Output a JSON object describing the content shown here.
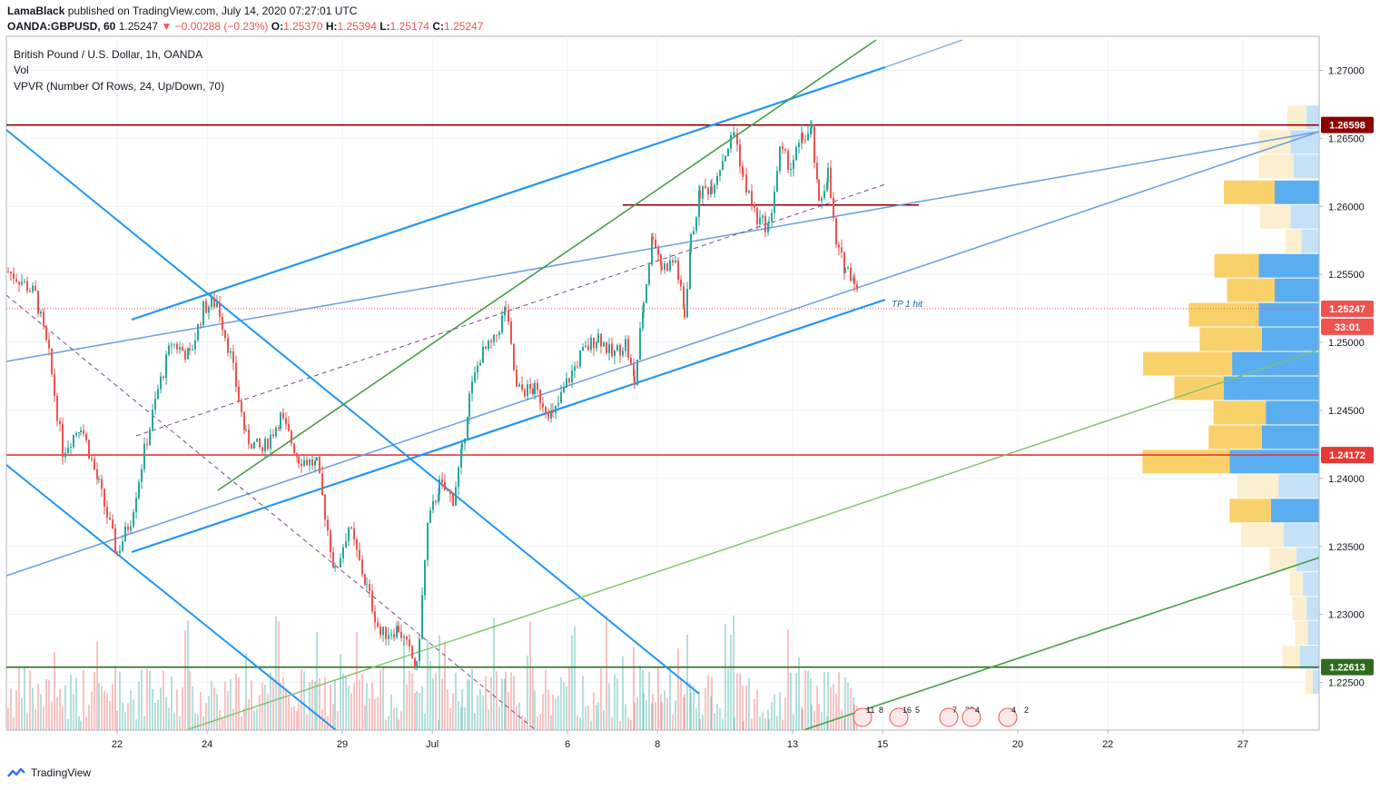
{
  "header": {
    "author": "LamaBlack",
    "published": "published on TradingView.com, July 14, 2020 07:27:01 UTC",
    "symbol": "OANDA:GBPUSD, 60",
    "last": "1.25247",
    "change": "−0.00288 (−0.23%)",
    "o_label": "O:",
    "o_value": "1.25370",
    "h_label": "H:",
    "h_value": "1.25394",
    "l_label": "L:",
    "l_value": "1.25174",
    "c_label": "C:",
    "c_value": "1.25247"
  },
  "legend": {
    "main": "British Pound / U.S. Dollar, 1h, OANDA",
    "vol": "Vol",
    "vpvr": "VPVR (Number Of Rows, 24, Up/Down, 70)"
  },
  "footer": {
    "brand": "TradingView"
  },
  "colors": {
    "up": "#26a69a",
    "down": "#ef5350",
    "blue": "#2196f3",
    "green": "#43a047",
    "darkred": "#8b0000",
    "red": "#e53935",
    "darkgreen": "#2e6b1f",
    "vp_up": "#5aaef0",
    "vp_down": "#f9d16b",
    "vp_up_light": "#c5e1f7",
    "vp_down_light": "#fcefcf"
  },
  "chart_data": {
    "type": "candlestick",
    "y_ticks": [
      "1.27000",
      "1.26500",
      "1.26000",
      "1.25500",
      "1.25000",
      "1.24500",
      "1.24000",
      "1.23500",
      "1.23000",
      "1.22500"
    ],
    "ylim": [
      1.2215,
      1.2725
    ],
    "x_ticks": [
      "22",
      "24",
      "29",
      "Jul",
      "6",
      "8",
      "13",
      "15",
      "20",
      "22",
      "27"
    ],
    "price_labels": [
      {
        "value": "1.26598",
        "price": 1.26598,
        "color": "#8b0000"
      },
      {
        "value": "1.25247",
        "price": 1.25247,
        "color": "#ef5350"
      },
      {
        "value": "33:01",
        "price": 1.25115,
        "color": "#ef5350"
      },
      {
        "value": "1.24172",
        "price": 1.24172,
        "color": "#e53935"
      },
      {
        "value": "1.22613",
        "price": 1.22613,
        "color": "#2e6b1f"
      }
    ],
    "horizontal_levels": [
      1.26598,
      1.24172,
      1.22613
    ],
    "resistance_segment": {
      "price": 1.2601
    },
    "annotation": "TP 1 hit",
    "close_trajectory": [
      [
        0,
        1.2552
      ],
      [
        15,
        1.2545
      ],
      [
        30,
        1.2535
      ],
      [
        45,
        1.249
      ],
      [
        60,
        1.242
      ],
      [
        80,
        1.244
      ],
      [
        100,
        1.2395
      ],
      [
        120,
        1.2345
      ],
      [
        135,
        1.237
      ],
      [
        150,
        1.242
      ],
      [
        165,
        1.2465
      ],
      [
        180,
        1.25
      ],
      [
        200,
        1.249
      ],
      [
        215,
        1.2525
      ],
      [
        230,
        1.253
      ],
      [
        245,
        1.249
      ],
      [
        262,
        1.243
      ],
      [
        280,
        1.242
      ],
      [
        300,
        1.2445
      ],
      [
        320,
        1.2415
      ],
      [
        340,
        1.241
      ],
      [
        360,
        1.233
      ],
      [
        375,
        1.2365
      ],
      [
        395,
        1.232
      ],
      [
        410,
        1.2285
      ],
      [
        430,
        1.229
      ],
      [
        450,
        1.226
      ],
      [
        462,
        1.2365
      ],
      [
        475,
        1.2395
      ],
      [
        490,
        1.2385
      ],
      [
        500,
        1.242
      ],
      [
        508,
        1.246
      ],
      [
        520,
        1.249
      ],
      [
        535,
        1.25
      ],
      [
        548,
        1.2525
      ],
      [
        560,
        1.2465
      ],
      [
        580,
        1.2465
      ],
      [
        600,
        1.2445
      ],
      [
        615,
        1.247
      ],
      [
        630,
        1.249
      ],
      [
        650,
        1.2505
      ],
      [
        665,
        1.249
      ],
      [
        680,
        1.25
      ],
      [
        690,
        1.247
      ],
      [
        700,
        1.253
      ],
      [
        710,
        1.258
      ],
      [
        720,
        1.2555
      ],
      [
        735,
        1.256
      ],
      [
        745,
        1.252
      ],
      [
        752,
        1.2575
      ],
      [
        762,
        1.261
      ],
      [
        775,
        1.2615
      ],
      [
        790,
        1.264
      ],
      [
        800,
        1.2655
      ],
      [
        810,
        1.262
      ],
      [
        825,
        1.259
      ],
      [
        838,
        1.2585
      ],
      [
        850,
        1.264
      ],
      [
        862,
        1.263
      ],
      [
        875,
        1.265
      ],
      [
        885,
        1.2655
      ],
      [
        893,
        1.26
      ],
      [
        903,
        1.2625
      ],
      [
        912,
        1.257
      ],
      [
        922,
        1.2555
      ],
      [
        932,
        1.2548
      ],
      [
        938,
        1.25247
      ]
    ],
    "volume_profile": [
      {
        "price": 1.2665,
        "up": 20,
        "down": 30
      },
      {
        "price": 1.2647,
        "up": 45,
        "down": 50
      },
      {
        "price": 1.2629,
        "up": 40,
        "down": 55
      },
      {
        "price": 1.261,
        "up": 70,
        "down": 80
      },
      {
        "price": 1.2592,
        "up": 45,
        "down": 48
      },
      {
        "price": 1.2574,
        "up": 28,
        "down": 25
      },
      {
        "price": 1.2556,
        "up": 95,
        "down": 70
      },
      {
        "price": 1.2538,
        "up": 70,
        "down": 75
      },
      {
        "price": 1.252,
        "up": 95,
        "down": 110
      },
      {
        "price": 1.2502,
        "up": 90,
        "down": 98
      },
      {
        "price": 1.2484,
        "up": 137,
        "down": 140
      },
      {
        "price": 1.2466,
        "up": 150,
        "down": 78
      },
      {
        "price": 1.2448,
        "up": 84,
        "down": 82
      },
      {
        "price": 1.243,
        "up": 90,
        "down": 84
      },
      {
        "price": 1.2412,
        "up": 141,
        "down": 137
      },
      {
        "price": 1.2394,
        "up": 64,
        "down": 65
      },
      {
        "price": 1.2376,
        "up": 76,
        "down": 65
      },
      {
        "price": 1.2358,
        "up": 56,
        "down": 67
      },
      {
        "price": 1.234,
        "up": 36,
        "down": 42
      },
      {
        "price": 1.2322,
        "up": 26,
        "down": 20
      },
      {
        "price": 1.2304,
        "up": 20,
        "down": 22
      },
      {
        "price": 1.2286,
        "up": 18,
        "down": 20
      },
      {
        "price": 1.2268,
        "up": 30,
        "down": 28
      },
      {
        "price": 1.225,
        "up": 10,
        "down": 12
      }
    ],
    "events": [
      {
        "label": "11",
        "sub": "8"
      },
      {
        "label": "16",
        "sub": "5"
      },
      {
        "label": "7",
        "sub": "38"
      },
      {
        "label": "4",
        "sub": ""
      },
      {
        "label": "4",
        "sub": "2"
      }
    ]
  }
}
